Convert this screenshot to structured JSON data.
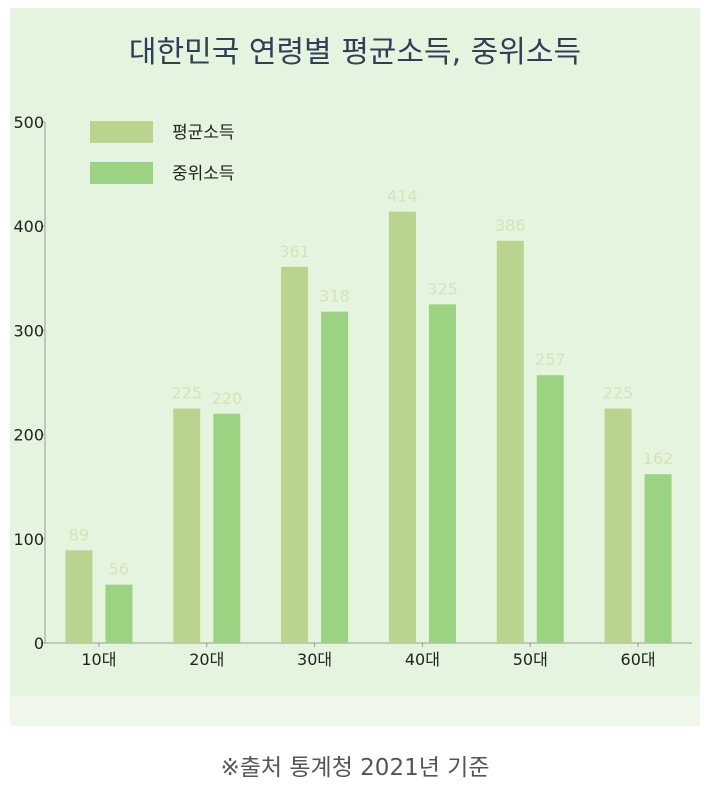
{
  "chart_data": {
    "type": "bar",
    "title": "대한민국 연령별 평균소득, 중위소득",
    "categories": [
      "10대",
      "20대",
      "30대",
      "40대",
      "50대",
      "60대"
    ],
    "series": [
      {
        "name": "평균소득",
        "values": [
          89,
          225,
          361,
          414,
          386,
          225
        ],
        "color": "#b8d48f"
      },
      {
        "name": "중위소득",
        "values": [
          56,
          220,
          318,
          325,
          257,
          162
        ],
        "color": "#9bd383"
      }
    ],
    "ylim": [
      0,
      500
    ],
    "yticks": [
      "0",
      "100",
      "200",
      "300",
      "400",
      "500"
    ],
    "xlabel": "",
    "ylabel": "",
    "grid": false,
    "legend_position": "top-left",
    "data_label_color": "#d6e3b8"
  },
  "footer": {
    "source": "※출처 통계청 2021년 기준"
  }
}
